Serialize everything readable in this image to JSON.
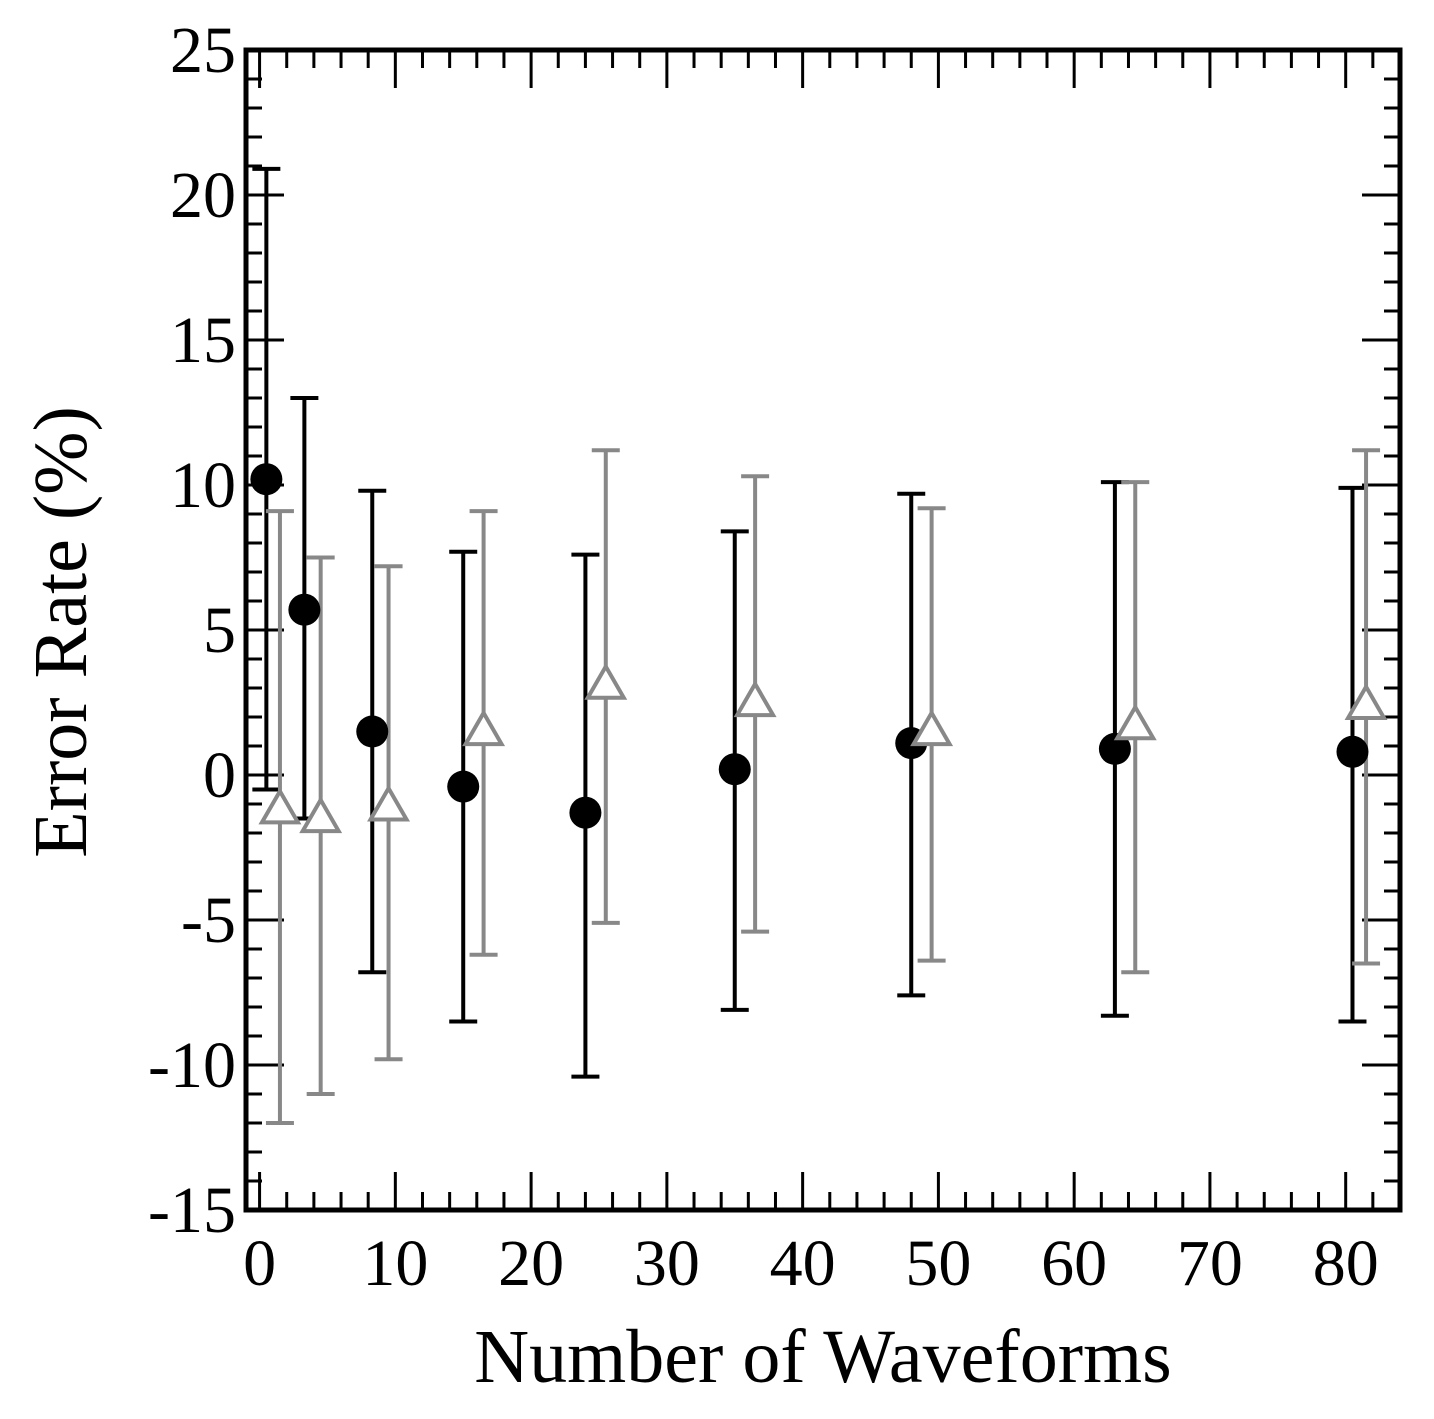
{
  "chart_data": {
    "type": "scatter",
    "title": "",
    "xlabel": "Number of Waveforms",
    "ylabel": "Error Rate (%)",
    "xlim": [
      -1,
      84
    ],
    "ylim": [
      -15,
      25
    ],
    "xticks": [
      "0",
      "10",
      "20",
      "30",
      "40",
      "50",
      "60",
      "70",
      "80"
    ],
    "yticks": [
      "-15",
      "-10",
      "-5",
      "0",
      "5",
      "10",
      "15",
      "20",
      "25"
    ],
    "grid": false,
    "legend": "none",
    "series": [
      {
        "marker": "filled-circle",
        "color": "#000000",
        "points": [
          {
            "x": 0.5,
            "y": 10.2,
            "lo": -0.5,
            "hi": 20.9
          },
          {
            "x": 3.3,
            "y": 5.7,
            "lo": -1.5,
            "hi": 13.0
          },
          {
            "x": 8.3,
            "y": 1.5,
            "lo": -6.8,
            "hi": 9.8
          },
          {
            "x": 15.0,
            "y": -0.4,
            "lo": -8.5,
            "hi": 7.7
          },
          {
            "x": 24.0,
            "y": -1.3,
            "lo": -10.4,
            "hi": 7.6
          },
          {
            "x": 35.0,
            "y": 0.2,
            "lo": -8.1,
            "hi": 8.4
          },
          {
            "x": 48.0,
            "y": 1.1,
            "lo": -7.6,
            "hi": 9.7
          },
          {
            "x": 63.0,
            "y": 0.9,
            "lo": -8.3,
            "hi": 10.1
          },
          {
            "x": 80.5,
            "y": 0.8,
            "lo": -8.5,
            "hi": 9.9
          }
        ]
      },
      {
        "marker": "open-triangle",
        "color": "#888888",
        "points": [
          {
            "x": 1.5,
            "y": -1.2,
            "lo": -12.0,
            "hi": 9.1
          },
          {
            "x": 4.5,
            "y": -1.5,
            "lo": -11.0,
            "hi": 7.5
          },
          {
            "x": 9.5,
            "y": -1.1,
            "lo": -9.8,
            "hi": 7.2
          },
          {
            "x": 16.5,
            "y": 1.5,
            "lo": -6.2,
            "hi": 9.1
          },
          {
            "x": 25.5,
            "y": 3.1,
            "lo": -5.1,
            "hi": 11.2
          },
          {
            "x": 36.5,
            "y": 2.5,
            "lo": -5.4,
            "hi": 10.3
          },
          {
            "x": 49.5,
            "y": 1.5,
            "lo": -6.4,
            "hi": 9.2
          },
          {
            "x": 64.5,
            "y": 1.7,
            "lo": -6.8,
            "hi": 10.1
          },
          {
            "x": 81.5,
            "y": 2.4,
            "lo": -6.5,
            "hi": 11.2
          }
        ]
      }
    ]
  }
}
